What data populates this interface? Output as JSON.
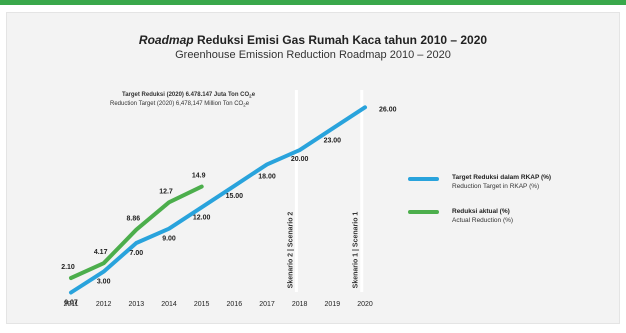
{
  "top_bar_color": "#3aa84b",
  "title": {
    "italic_part": "Roadmap",
    "rest": " Reduksi Emisi Gas Rumah Kaca tahun 2010 – 2020",
    "subtitle": "Greenhouse Emission Reduction Roadmap 2010 – 2020"
  },
  "target_note": {
    "line1_text": "Target Reduksi (2020) 6.478.147 Juta Ton CO",
    "line1_sub": "2",
    "line1_suffix": "e",
    "line2_text": "Reduction Target (2020) 6,478,147 Million Ton CO",
    "line2_sub": "2",
    "line2_suffix": "e"
  },
  "scenario_lines": [
    {
      "x": 2017.9,
      "label": "Skenario 2  |  Scenario 2"
    },
    {
      "x": 2019.9,
      "label": "Skenario 1  |  Scenario 1"
    }
  ],
  "chart_data": {
    "type": "line",
    "x": [
      2011,
      2012,
      2013,
      2014,
      2015,
      2016,
      2017,
      2018,
      2019,
      2020
    ],
    "tick_labels": [
      "2011",
      "2012",
      "2013",
      "2014",
      "2015",
      "2016",
      "2017",
      "2018",
      "2019",
      "2020"
    ],
    "ylim": [
      0,
      28
    ],
    "grid": false,
    "legend_position": "right",
    "series": [
      {
        "name": "Target Reduksi dalam RKAP (%)",
        "name_en": "Reduction Target in RKAP (%)",
        "color": "#29a3dc",
        "x": [
          2011,
          2012,
          2013,
          2014,
          2015,
          2016,
          2017,
          2018,
          2019,
          2020
        ],
        "values": [
          0.07,
          3.0,
          7.0,
          9.0,
          12.0,
          15.0,
          18.0,
          20.0,
          23.0,
          26.0
        ],
        "labels": [
          "0.07",
          "3.00",
          "7.00",
          "9.00",
          "12.00",
          "15.00",
          "18.00",
          "20.00",
          "23.00",
          "26.00"
        ]
      },
      {
        "name": "Reduksi aktual (%)",
        "name_en": "Actual Reduction (%)",
        "color": "#4cae4c",
        "x": [
          2011,
          2012,
          2013,
          2014,
          2015
        ],
        "values": [
          2.1,
          4.17,
          8.86,
          12.7,
          14.9
        ],
        "labels": [
          "2.10",
          "4.17",
          "8.86",
          "12.7",
          "14.9"
        ]
      }
    ]
  }
}
